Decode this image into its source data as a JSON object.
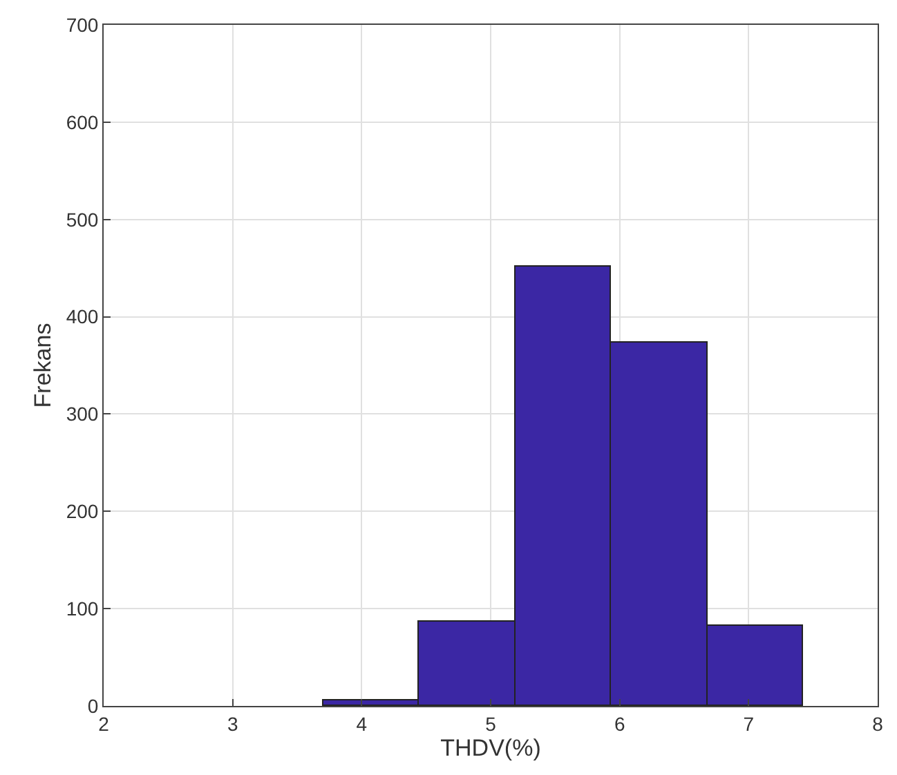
{
  "chart_data": {
    "type": "histogram",
    "xlabel": "THDV(%)",
    "ylabel": "Frekans",
    "bins": [
      3.7,
      4.44,
      5.19,
      5.93,
      6.68,
      7.42
    ],
    "values": [
      5,
      87,
      452,
      373,
      82
    ],
    "color": "#3b27a4",
    "xlim": [
      2,
      8
    ],
    "xticks": [
      2,
      3,
      4,
      5,
      6,
      7,
      8
    ],
    "ylim": [
      0,
      700
    ],
    "yticks": [
      0,
      100,
      200,
      300,
      400,
      500,
      600,
      700
    ],
    "grid": true
  }
}
